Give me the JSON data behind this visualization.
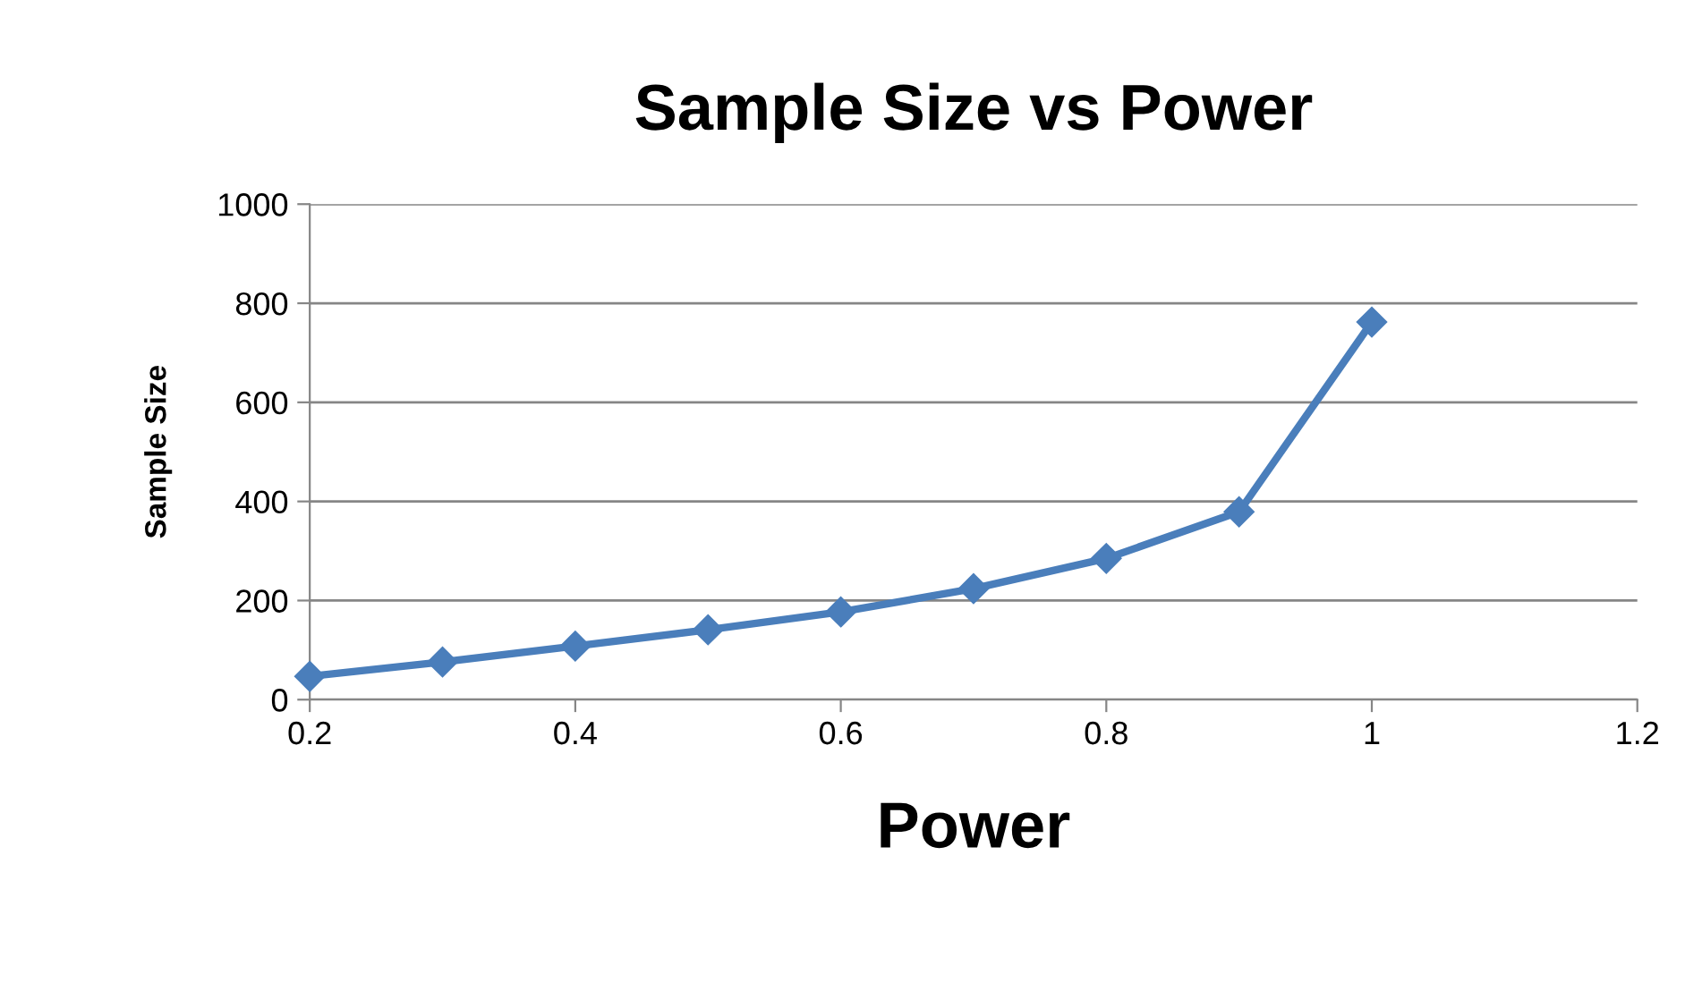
{
  "chart_data": {
    "type": "line",
    "title": "Sample Size vs Power",
    "xlabel": "Power",
    "ylabel": "Sample Size",
    "x": [
      0.2,
      0.3,
      0.4,
      0.5,
      0.6,
      0.7,
      0.8,
      0.9,
      1.0
    ],
    "series": [
      {
        "color": "#4a7ebb",
        "values": [
          47,
          76,
          108,
          141,
          177,
          224,
          285,
          379,
          762
        ]
      }
    ],
    "xlim": [
      0.2,
      1.2
    ],
    "xticks": [
      0.2,
      0.4,
      0.6,
      0.8,
      1,
      1.2
    ],
    "ylim": [
      0,
      1000
    ],
    "yticks": [
      0,
      200,
      400,
      600,
      800,
      1000
    ],
    "grid": "y",
    "legend": false,
    "marker": "diamond",
    "line_style": "solid"
  }
}
